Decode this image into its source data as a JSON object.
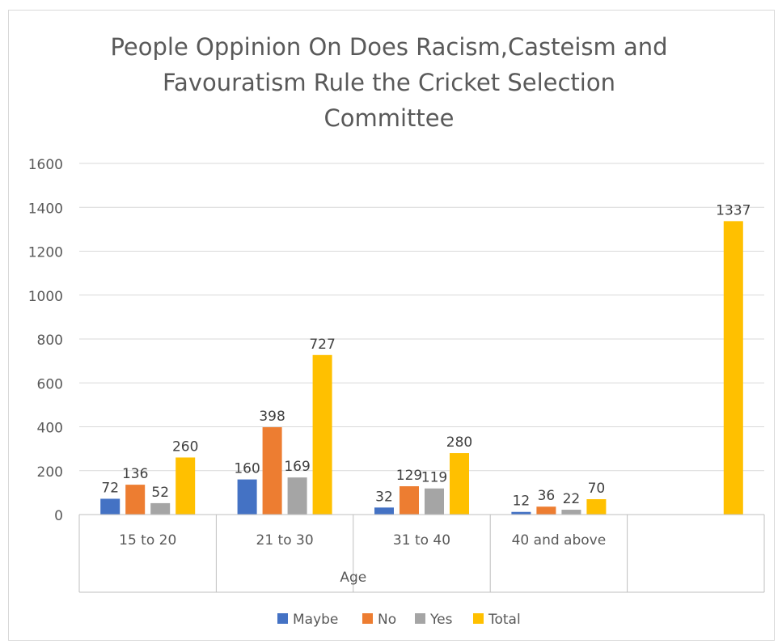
{
  "chart_data": {
    "type": "bar",
    "title_lines": [
      "People Oppinion On Does Racism,Casteism and",
      "Favouratism Rule the Cricket Selection",
      "Committee"
    ],
    "xlabel": "Age",
    "ylabel": "",
    "ylim": [
      0,
      1600
    ],
    "yticks": [
      0,
      200,
      400,
      600,
      800,
      1000,
      1200,
      1400,
      1600
    ],
    "grid": true,
    "legend_position": "bottom",
    "categories": [
      "15 to 20",
      "21 to 30",
      "31 to 40",
      "40 and above",
      ""
    ],
    "series": [
      {
        "name": "Maybe",
        "color": "#4472C4",
        "values": [
          72,
          160,
          32,
          12,
          null
        ]
      },
      {
        "name": "No",
        "color": "#ED7D31",
        "values": [
          136,
          398,
          129,
          36,
          null
        ]
      },
      {
        "name": "Yes",
        "color": "#A5A5A5",
        "values": [
          52,
          169,
          119,
          22,
          null
        ]
      },
      {
        "name": "Total",
        "color": "#FFC000",
        "values": [
          260,
          727,
          280,
          70,
          1337
        ]
      }
    ]
  }
}
